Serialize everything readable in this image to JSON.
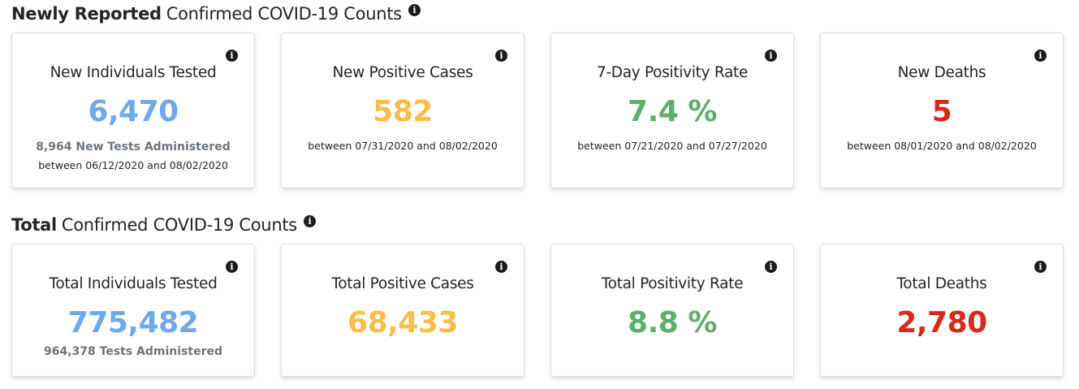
{
  "colors": {
    "blue": "#6fa8ec",
    "orange": "#fbbd48",
    "green": "#5fad6d",
    "red": "#d9291c"
  },
  "new_section": {
    "title_bold": "Newly Reported",
    "title_rest": "Confirmed COVID-19 Counts",
    "icon": "info-circle-icon",
    "cards": [
      {
        "title": "New Individuals Tested",
        "value": "6,470",
        "sub": "8,964 New Tests Administered",
        "date": "between 06/12/2020 and 08/02/2020",
        "color": "#6fa8ec"
      },
      {
        "title": "New Positive Cases",
        "value": "582",
        "date": "between 07/31/2020 and 08/02/2020",
        "color": "#fbbd48"
      },
      {
        "title": "7-Day Positivity Rate",
        "value": "7.4 %",
        "date": "between 07/21/2020 and 07/27/2020",
        "color": "#5fad6d"
      },
      {
        "title": "New Deaths",
        "value": "5",
        "date": "between 08/01/2020 and 08/02/2020",
        "color": "#d9291c"
      }
    ]
  },
  "total_section": {
    "title_bold": "Total",
    "title_rest": "Confirmed COVID-19 Counts",
    "icon": "info-circle-icon",
    "cards": [
      {
        "title": "Total Individuals Tested",
        "value": "775,482",
        "sub": "964,378 Tests Administered",
        "color": "#6fa8ec"
      },
      {
        "title": "Total Positive Cases",
        "value": "68,433",
        "color": "#fbbd48"
      },
      {
        "title": "Total Positivity Rate",
        "value": "8.8 %",
        "color": "#5fad6d"
      },
      {
        "title": "Total Deaths",
        "value": "2,780",
        "color": "#d9291c"
      }
    ]
  }
}
